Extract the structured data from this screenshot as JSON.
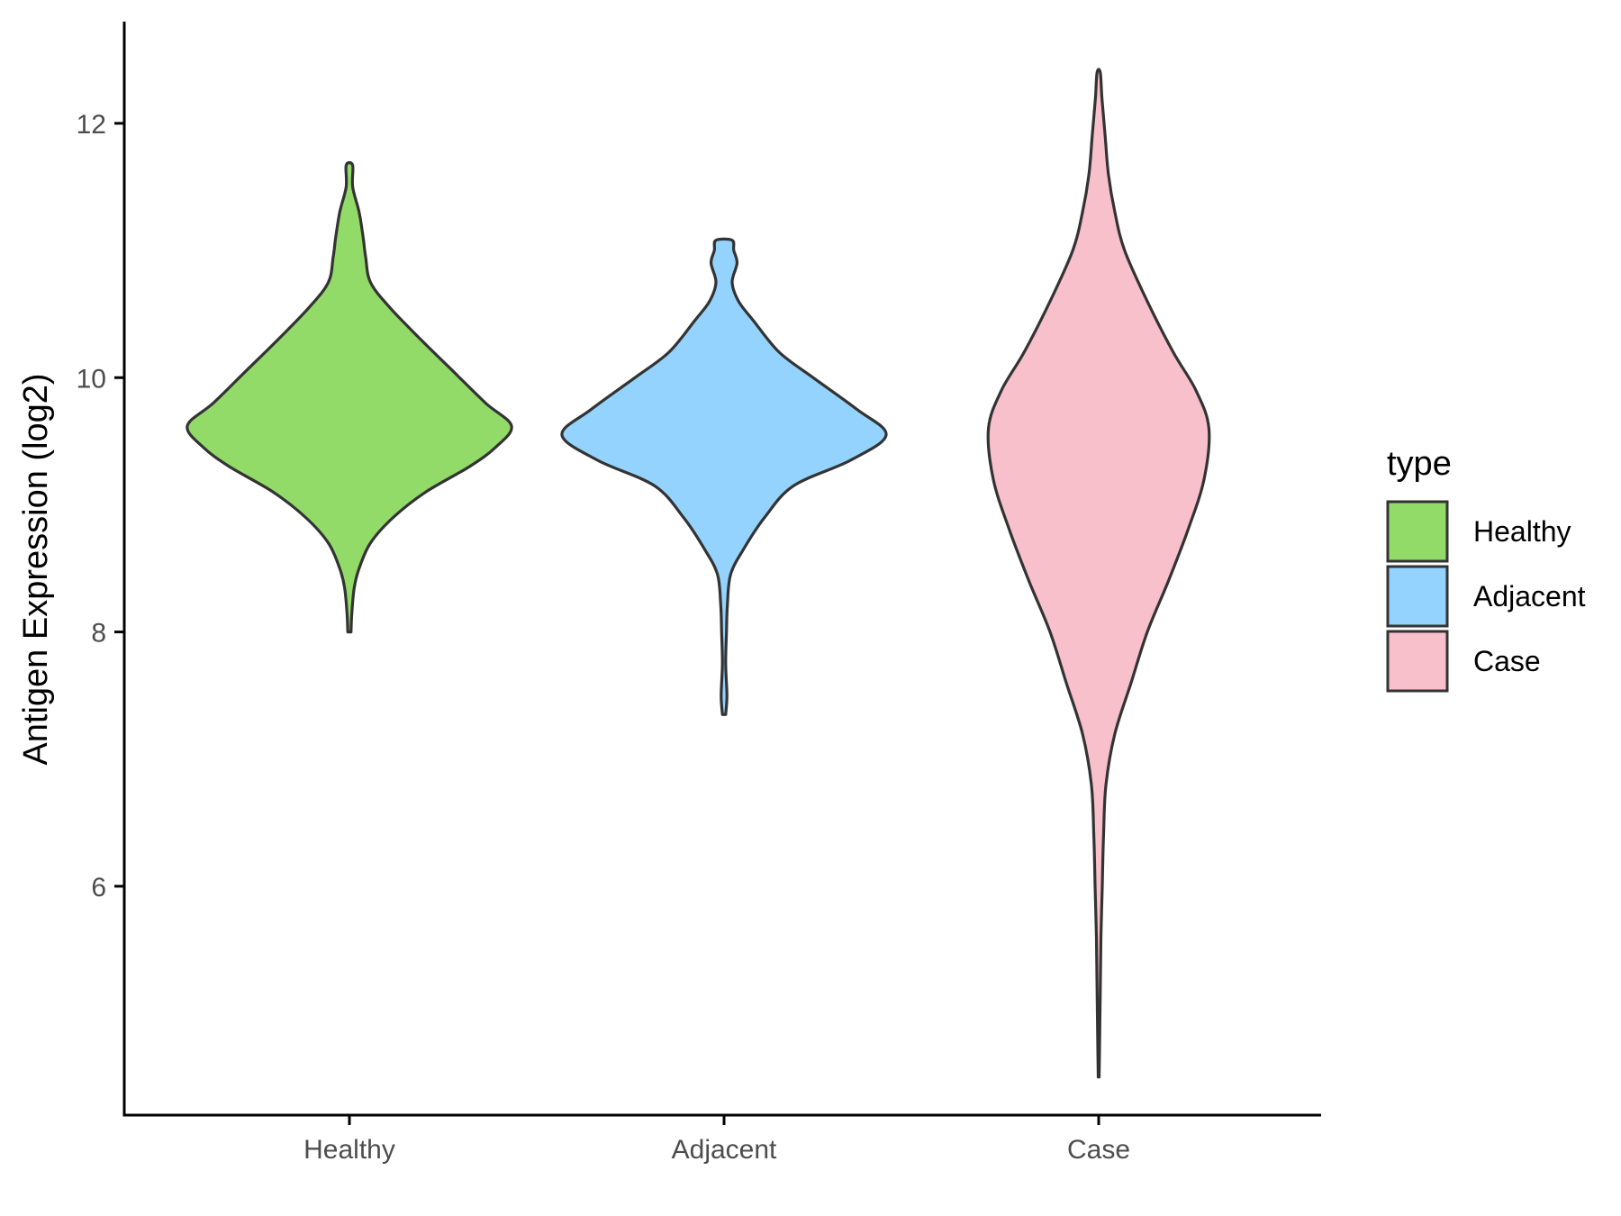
{
  "chart_data": {
    "type": "violin",
    "title": "",
    "xlabel": "",
    "ylabel": "Antigen Expression (log2)",
    "categories": [
      "Healthy",
      "Adjacent",
      "Case"
    ],
    "ylim": [
      4.2,
      12.8
    ],
    "yticks": [
      6,
      8,
      10,
      12
    ],
    "ytick_labels": [
      "6",
      "8",
      "10",
      "12"
    ],
    "grid": false,
    "legend": {
      "title": "type",
      "placement": "right",
      "entries": [
        "Healthy",
        "Adjacent",
        "Case"
      ]
    },
    "series": [
      {
        "category": "Healthy",
        "color": "#93db69",
        "min": 8.0,
        "max": 11.67,
        "density": [
          [
            8.0,
            0.01
          ],
          [
            8.15,
            0.015
          ],
          [
            8.35,
            0.03
          ],
          [
            8.5,
            0.06
          ],
          [
            8.7,
            0.13
          ],
          [
            8.9,
            0.27
          ],
          [
            9.1,
            0.47
          ],
          [
            9.3,
            0.74
          ],
          [
            9.45,
            0.9
          ],
          [
            9.62,
            1.0
          ],
          [
            9.8,
            0.84
          ],
          [
            10.05,
            0.64
          ],
          [
            10.3,
            0.44
          ],
          [
            10.55,
            0.25
          ],
          [
            10.75,
            0.13
          ],
          [
            10.95,
            0.1
          ],
          [
            11.1,
            0.085
          ],
          [
            11.3,
            0.06
          ],
          [
            11.5,
            0.02
          ],
          [
            11.67,
            0.02
          ]
        ]
      },
      {
        "category": "Adjacent",
        "color": "#94d3fd",
        "min": 7.35,
        "max": 11.08,
        "density": [
          [
            7.35,
            0.01
          ],
          [
            7.5,
            0.018
          ],
          [
            7.75,
            0.01
          ],
          [
            8.0,
            0.015
          ],
          [
            8.2,
            0.02
          ],
          [
            8.45,
            0.04
          ],
          [
            8.65,
            0.12
          ],
          [
            8.9,
            0.25
          ],
          [
            9.15,
            0.43
          ],
          [
            9.35,
            0.78
          ],
          [
            9.55,
            1.0
          ],
          [
            9.75,
            0.82
          ],
          [
            10.0,
            0.55
          ],
          [
            10.2,
            0.34
          ],
          [
            10.45,
            0.18
          ],
          [
            10.6,
            0.09
          ],
          [
            10.75,
            0.05
          ],
          [
            10.9,
            0.08
          ],
          [
            11.0,
            0.06
          ],
          [
            11.08,
            0.05
          ]
        ]
      },
      {
        "category": "Case",
        "color": "#f7c0cb",
        "min": 4.5,
        "max": 12.4,
        "density": [
          [
            4.5,
            0.003
          ],
          [
            4.8,
            0.006
          ],
          [
            5.2,
            0.01
          ],
          [
            5.6,
            0.014
          ],
          [
            6.0,
            0.022
          ],
          [
            6.4,
            0.03
          ],
          [
            6.8,
            0.045
          ],
          [
            7.2,
            0.1
          ],
          [
            7.6,
            0.2
          ],
          [
            8.0,
            0.3
          ],
          [
            8.4,
            0.43
          ],
          [
            8.8,
            0.55
          ],
          [
            9.2,
            0.65
          ],
          [
            9.6,
            0.68
          ],
          [
            9.9,
            0.6
          ],
          [
            10.2,
            0.46
          ],
          [
            10.6,
            0.3
          ],
          [
            11.0,
            0.16
          ],
          [
            11.3,
            0.1
          ],
          [
            11.6,
            0.06
          ],
          [
            11.9,
            0.04
          ],
          [
            12.2,
            0.02
          ],
          [
            12.4,
            0.01
          ]
        ]
      }
    ]
  }
}
